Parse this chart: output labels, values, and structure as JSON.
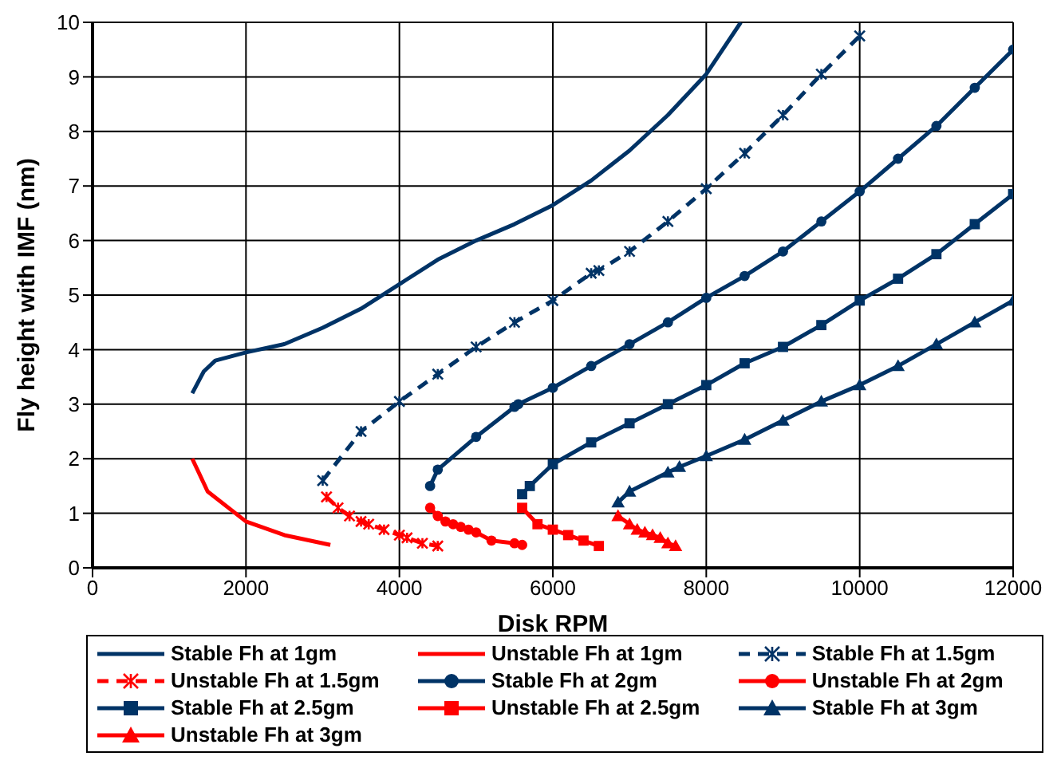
{
  "chart_data": {
    "type": "line",
    "xlabel": "Disk RPM",
    "ylabel": "Fly height with IMF (nm)",
    "xlim": [
      0,
      12000
    ],
    "xticks": [
      0,
      2000,
      4000,
      6000,
      8000,
      10000,
      12000
    ],
    "ylim": [
      0,
      10
    ],
    "yticks": [
      0,
      1,
      2,
      3,
      4,
      5,
      6,
      7,
      8,
      9,
      10
    ],
    "grid": true,
    "legend": "bottom",
    "series": [
      {
        "name": "Stable Fh at 1gm",
        "color": "#003366",
        "marker": "none",
        "line_style": "solid",
        "x": [
          1300,
          1450,
          1600,
          2000,
          2500,
          3000,
          3500,
          4000,
          4500,
          5000,
          5500,
          6000,
          6500,
          7000,
          7500,
          8000,
          8450
        ],
        "values": [
          3.2,
          3.6,
          3.8,
          3.95,
          4.1,
          4.4,
          4.75,
          5.2,
          5.65,
          6.0,
          6.3,
          6.65,
          7.1,
          7.65,
          8.3,
          9.05,
          10
        ]
      },
      {
        "name": "Unstable Fh at 1gm",
        "color": "#ff0000",
        "marker": "none",
        "line_style": "solid",
        "x": [
          1300,
          1500,
          2000,
          2500,
          3100
        ],
        "values": [
          2.0,
          1.4,
          0.85,
          0.6,
          0.42
        ]
      },
      {
        "name": "Stable Fh at 1.5gm",
        "color": "#003366",
        "marker": "cross",
        "line_style": "dashed",
        "x": [
          3000,
          3500,
          4000,
          4500,
          5000,
          5500,
          6000,
          6500,
          6600,
          7000,
          7500,
          8000,
          8500,
          9000,
          9500,
          10000
        ],
        "values": [
          1.6,
          2.5,
          3.05,
          3.55,
          4.05,
          4.5,
          4.9,
          5.4,
          5.45,
          5.8,
          6.35,
          6.95,
          7.6,
          8.3,
          9.05,
          9.75
        ]
      },
      {
        "name": "Unstable Fh at 1.5gm",
        "color": "#ff0000",
        "marker": "cross",
        "line_style": "dashed",
        "x": [
          3050,
          3200,
          3350,
          3500,
          3600,
          3800,
          4000,
          4100,
          4300,
          4500
        ],
        "values": [
          1.3,
          1.1,
          0.95,
          0.85,
          0.8,
          0.7,
          0.6,
          0.55,
          0.45,
          0.4
        ]
      },
      {
        "name": "Stable Fh at 2gm",
        "color": "#003366",
        "marker": "circle",
        "line_style": "solid",
        "x": [
          4400,
          4500,
          5000,
          5500,
          5550,
          6000,
          6500,
          7000,
          7500,
          8000,
          8500,
          9000,
          9500,
          10000,
          10500,
          11000,
          11500,
          12000
        ],
        "values": [
          1.5,
          1.8,
          2.4,
          2.95,
          3.0,
          3.3,
          3.7,
          4.1,
          4.5,
          4.95,
          5.35,
          5.8,
          6.35,
          6.9,
          7.5,
          8.1,
          8.8,
          9.5
        ]
      },
      {
        "name": "Unstable Fh at 2gm",
        "color": "#ff0000",
        "marker": "circle",
        "line_style": "solid",
        "x": [
          4400,
          4500,
          4600,
          4700,
          4800,
          4900,
          5000,
          5200,
          5500,
          5600
        ],
        "values": [
          1.1,
          0.95,
          0.85,
          0.8,
          0.75,
          0.7,
          0.65,
          0.5,
          0.45,
          0.42
        ]
      },
      {
        "name": "Stable Fh at 2.5gm",
        "color": "#003366",
        "marker": "square",
        "line_style": "solid",
        "x": [
          5600,
          5700,
          6000,
          6500,
          7000,
          7500,
          8000,
          8500,
          9000,
          9500,
          10000,
          10500,
          11000,
          11500,
          12000
        ],
        "values": [
          1.35,
          1.5,
          1.9,
          2.3,
          2.65,
          3.0,
          3.35,
          3.75,
          4.05,
          4.45,
          4.9,
          5.3,
          5.75,
          6.3,
          6.85
        ]
      },
      {
        "name": "Unstable Fh at 2.5gm",
        "color": "#ff0000",
        "marker": "square",
        "line_style": "solid",
        "x": [
          5600,
          5800,
          6000,
          6200,
          6400,
          6600
        ],
        "values": [
          1.1,
          0.8,
          0.7,
          0.6,
          0.5,
          0.4
        ]
      },
      {
        "name": "Stable Fh at 3gm",
        "color": "#003366",
        "marker": "triangle",
        "line_style": "solid",
        "x": [
          6850,
          7000,
          7500,
          7650,
          8000,
          8500,
          9000,
          9500,
          10000,
          10500,
          11000,
          11500,
          12000
        ],
        "values": [
          1.2,
          1.4,
          1.75,
          1.85,
          2.05,
          2.35,
          2.7,
          3.05,
          3.35,
          3.7,
          4.1,
          4.5,
          4.9
        ]
      },
      {
        "name": "Unstable Fh at 3gm",
        "color": "#ff0000",
        "marker": "triangle",
        "line_style": "solid",
        "x": [
          6850,
          7000,
          7100,
          7200,
          7300,
          7400,
          7500,
          7600
        ],
        "values": [
          0.95,
          0.8,
          0.7,
          0.65,
          0.6,
          0.55,
          0.45,
          0.4
        ]
      }
    ]
  }
}
